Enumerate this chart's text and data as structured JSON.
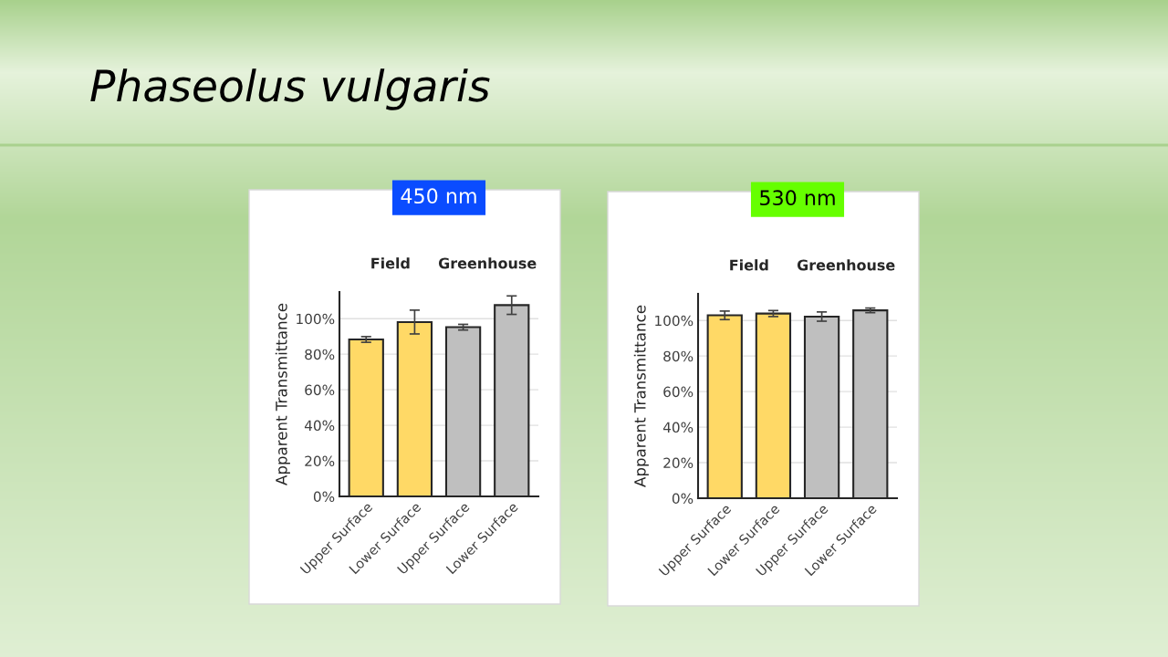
{
  "chart_data": [
    {
      "type": "bar",
      "title": "450 nm",
      "ylabel": "Apparent Transmittance",
      "categories": [
        "Upper Surface",
        "Lower Surface",
        "Upper Surface",
        "Lower Surface"
      ],
      "values": [
        88.3,
        98.1,
        95.2,
        107.6
      ],
      "errors": [
        1.6,
        6.7,
        1.6,
        5.2
      ],
      "colors": [
        "#ffd966",
        "#ffd966",
        "#bfbfbf",
        "#bfbfbf"
      ],
      "ylim": [
        0,
        115
      ],
      "yticks": [
        {
          "value": 0,
          "label": "0%"
        },
        {
          "value": 20,
          "label": "20%"
        },
        {
          "value": 40,
          "label": "40%"
        },
        {
          "value": 60,
          "label": "60%"
        },
        {
          "value": 80,
          "label": "80%"
        },
        {
          "value": 100,
          "label": "100%"
        }
      ],
      "grid": "y",
      "annotations": [
        "Field",
        "Greenhouse",
        "Phaseolus vulgaris"
      ]
    },
    {
      "type": "bar",
      "title": "530 nm",
      "ylabel": "Apparent Transmittance",
      "categories": [
        "Upper Surface",
        "Lower Surface",
        "Upper Surface",
        "Lower Surface"
      ],
      "values": [
        102.9,
        103.9,
        102.2,
        105.7
      ],
      "errors": [
        2.4,
        1.7,
        2.6,
        1.3
      ],
      "colors": [
        "#ffd966",
        "#ffd966",
        "#bfbfbf",
        "#bfbfbf"
      ],
      "ylim": [
        0,
        115
      ],
      "yticks": [
        {
          "value": 0,
          "label": "0%"
        },
        {
          "value": 20,
          "label": "20%"
        },
        {
          "value": 40,
          "label": "40%"
        },
        {
          "value": 60,
          "label": "60%"
        },
        {
          "value": 80,
          "label": "80%"
        },
        {
          "value": 100,
          "label": "100%"
        }
      ],
      "grid": "y",
      "annotations": [
        "Field",
        "Greenhouse"
      ]
    }
  ]
}
